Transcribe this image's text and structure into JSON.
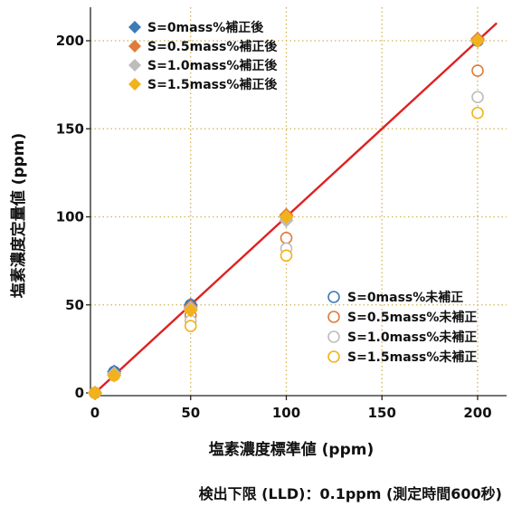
{
  "chart_data": {
    "type": "scatter",
    "xlabel": "塩素濃度標準値 (ppm)",
    "ylabel": "塩素濃度定量値 (ppm)",
    "xlim": [
      0,
      210
    ],
    "ylim": [
      0,
      210
    ],
    "xticks": [
      "0",
      "50",
      "100",
      "150",
      "200"
    ],
    "yticks": [
      "0",
      "50",
      "100",
      "150",
      "200"
    ],
    "grid": true,
    "reference_line": {
      "x": [
        0,
        210
      ],
      "y": [
        0,
        210
      ],
      "color": "#e02020"
    },
    "legend_corrected_position": "top-left",
    "legend_uncorrected_position": "bottom-right",
    "series_corrected": [
      {
        "name": "S=0mass%補正後",
        "color": "#3d7ab8",
        "marker": "diamond",
        "x": [
          0,
          10,
          50,
          100,
          200
        ],
        "y": [
          0,
          12,
          50,
          100,
          200
        ]
      },
      {
        "name": "S=0.5mass%補正後",
        "color": "#e07b39",
        "marker": "diamond",
        "x": [
          0,
          10,
          50,
          100,
          200
        ],
        "y": [
          0,
          11,
          49,
          101,
          201
        ]
      },
      {
        "name": "S=1.0mass%補正後",
        "color": "#bdbdbd",
        "marker": "diamond",
        "x": [
          0,
          10,
          50,
          100,
          200
        ],
        "y": [
          0,
          11,
          48,
          98,
          200
        ]
      },
      {
        "name": "S=1.5mass%補正後",
        "color": "#f2b21c",
        "marker": "diamond",
        "x": [
          0,
          10,
          50,
          100,
          200
        ],
        "y": [
          0,
          10,
          47,
          100,
          200
        ]
      }
    ],
    "series_uncorrected": [
      {
        "name": "S=0mass%未補正",
        "color": "#3d7ab8",
        "marker": "circle",
        "x": [
          0,
          10,
          50,
          100,
          200
        ],
        "y": [
          0,
          12,
          50,
          100,
          200
        ]
      },
      {
        "name": "S=0.5mass%未補正",
        "color": "#e07b39",
        "marker": "circle",
        "x": [
          0,
          10,
          50,
          100,
          200
        ],
        "y": [
          0,
          11,
          44,
          88,
          183
        ]
      },
      {
        "name": "S=1.0mass%未補正",
        "color": "#bdbdbd",
        "marker": "circle",
        "x": [
          0,
          10,
          50,
          100,
          200
        ],
        "y": [
          0,
          10,
          41,
          82,
          168
        ]
      },
      {
        "name": "S=1.5mass%未補正",
        "color": "#f2b21c",
        "marker": "circle",
        "x": [
          0,
          10,
          50,
          100,
          200
        ],
        "y": [
          0,
          10,
          38,
          78,
          159
        ]
      }
    ]
  },
  "footnote": "検出下限 (LLD)：0.1ppm (測定時間600秒)"
}
